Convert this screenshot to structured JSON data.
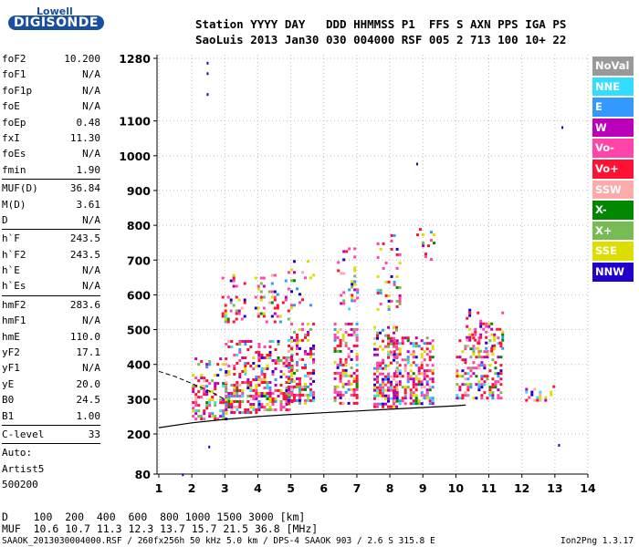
{
  "logo": {
    "line1": "Lowell",
    "line2": "DIGISONDE"
  },
  "header": {
    "labels": "Station YYYY DAY   DDD HHMMSS P1  FFS S AXN PPS IGA PS",
    "values": "SaoLuis 2013 Jan30 030 004000 RSF 005 2 713 100 10+ 22"
  },
  "params": [
    {
      "name": "foF2",
      "value": "10.200"
    },
    {
      "name": "foF1",
      "value": "N/A"
    },
    {
      "name": "foF1p",
      "value": "N/A"
    },
    {
      "name": "foE",
      "value": "N/A"
    },
    {
      "name": "foEp",
      "value": "0.48"
    },
    {
      "name": "fxI",
      "value": "11.30"
    },
    {
      "name": "foEs",
      "value": "N/A"
    },
    {
      "name": "fmin",
      "value": "1.90"
    },
    {
      "sep": true
    },
    {
      "name": "MUF(D)",
      "value": "36.84"
    },
    {
      "name": "M(D)",
      "value": "3.61"
    },
    {
      "name": "D",
      "value": "N/A"
    },
    {
      "sep": true
    },
    {
      "name": "h`F",
      "value": "243.5"
    },
    {
      "name": "h`F2",
      "value": "243.5"
    },
    {
      "name": "h`E",
      "value": "N/A"
    },
    {
      "name": "h`Es",
      "value": "N/A"
    },
    {
      "sep": true
    },
    {
      "name": "hmF2",
      "value": "283.6"
    },
    {
      "name": "hmF1",
      "value": "N/A"
    },
    {
      "name": "hmE",
      "value": "110.0"
    },
    {
      "name": "yF2",
      "value": "17.1"
    },
    {
      "name": "yF1",
      "value": "N/A"
    },
    {
      "name": "yE",
      "value": "20.0"
    },
    {
      "name": "B0",
      "value": "24.5"
    },
    {
      "name": "B1",
      "value": "1.00"
    },
    {
      "sep": true
    },
    {
      "name": "C-level",
      "value": "33"
    },
    {
      "sep": true
    },
    {
      "name": "Auto:",
      "value": ""
    },
    {
      "name": "Artist5",
      "value": ""
    },
    {
      "name": "500200",
      "value": ""
    }
  ],
  "legend": [
    {
      "label": "NoVal",
      "bg": "#999999",
      "fg": "#ffffff"
    },
    {
      "label": "NNE",
      "bg": "#33ddff",
      "fg": "#ffffff"
    },
    {
      "label": "E",
      "bg": "#3399ff",
      "fg": "#ffffff"
    },
    {
      "label": "W",
      "bg": "#bb00bb",
      "fg": "#ffffff"
    },
    {
      "label": "Vo-",
      "bg": "#ff44aa",
      "fg": "#ffffff"
    },
    {
      "label": "Vo+",
      "bg": "#ff1133",
      "fg": "#ffffff"
    },
    {
      "label": "SSW",
      "bg": "#ffaaaa",
      "fg": "#ffffff"
    },
    {
      "label": "X-",
      "bg": "#008800",
      "fg": "#ffffff"
    },
    {
      "label": "X+",
      "bg": "#77bb55",
      "fg": "#ffffff"
    },
    {
      "label": "SSE",
      "bg": "#dddd00",
      "fg": "#ffffff"
    },
    {
      "label": "NNW",
      "bg": "#2200cc",
      "fg": "#ffffff"
    }
  ],
  "bottom": {
    "d_row": "D    100  200  400  600  800 1000 1500 3000 [km]",
    "muf_row": "MUF  10.6 10.7 11.3 12.3 13.7 15.7 21.5 36.8 [MHz]",
    "footer_left": "SAAOK_2013030004000.RSF / 260fx256h 50 kHz 5.0 km / DPS-4 SAAOK 903 / 2.6 S 315.8 E",
    "footer_right": "Ion2Png 1.3.17"
  },
  "chart_data": {
    "type": "scatter",
    "x_ticks": [
      1,
      2,
      3,
      4,
      5,
      6,
      7,
      8,
      9,
      10,
      11,
      12,
      13,
      14
    ],
    "y_ticks": [
      80,
      200,
      300,
      400,
      500,
      600,
      700,
      800,
      900,
      1000,
      1100,
      1280
    ],
    "xlim": [
      1,
      14
    ],
    "ylim": [
      80,
      1280
    ],
    "grid": true,
    "trace_curve": {
      "x": [
        1.0,
        2.0,
        3.0,
        4.0,
        5.0,
        6.0,
        7.0,
        8.0,
        9.0,
        10.0,
        10.3
      ],
      "y": [
        218,
        232,
        242,
        250,
        256,
        261,
        266,
        271,
        276,
        281,
        283
      ]
    },
    "dashed_curve": {
      "x": [
        1.0,
        1.5,
        2.0,
        2.5,
        3.0
      ],
      "y": [
        380,
        365,
        345,
        325,
        300
      ]
    },
    "clusters": [
      {
        "x": [
          2.0,
          3.0
        ],
        "y": [
          245,
          420
        ],
        "density": 0.55
      },
      {
        "x": [
          2.9,
          3.6
        ],
        "y": [
          520,
          660
        ],
        "density": 0.35
      },
      {
        "x": [
          3.0,
          4.0
        ],
        "y": [
          260,
          470
        ],
        "density": 0.6
      },
      {
        "x": [
          4.0,
          5.0
        ],
        "y": [
          270,
          470
        ],
        "density": 0.6
      },
      {
        "x": [
          3.9,
          4.9
        ],
        "y": [
          520,
          660
        ],
        "density": 0.3
      },
      {
        "x": [
          4.9,
          5.7
        ],
        "y": [
          290,
          520
        ],
        "density": 0.55
      },
      {
        "x": [
          4.9,
          5.7
        ],
        "y": [
          560,
          700
        ],
        "density": 0.25
      },
      {
        "x": [
          6.3,
          7.0
        ],
        "y": [
          285,
          520
        ],
        "density": 0.65
      },
      {
        "x": [
          6.4,
          7.0
        ],
        "y": [
          560,
          760
        ],
        "density": 0.25
      },
      {
        "x": [
          7.5,
          8.2
        ],
        "y": [
          280,
          510
        ],
        "density": 0.7
      },
      {
        "x": [
          7.6,
          8.3
        ],
        "y": [
          560,
          790
        ],
        "density": 0.25
      },
      {
        "x": [
          8.1,
          9.3
        ],
        "y": [
          285,
          480
        ],
        "density": 0.65
      },
      {
        "x": [
          8.8,
          9.3
        ],
        "y": [
          700,
          800
        ],
        "density": 0.2
      },
      {
        "x": [
          10.0,
          11.4
        ],
        "y": [
          300,
          480
        ],
        "density": 0.55
      },
      {
        "x": [
          10.3,
          11.4
        ],
        "y": [
          440,
          560
        ],
        "density": 0.3
      },
      {
        "x": [
          12.1,
          13.0
        ],
        "y": [
          300,
          340
        ],
        "density": 0.35
      }
    ],
    "isolated": [
      {
        "x": 2.45,
        "y": 1270
      },
      {
        "x": 2.45,
        "y": 1240
      },
      {
        "x": 2.45,
        "y": 1180
      },
      {
        "x": 8.8,
        "y": 980
      },
      {
        "x": 13.2,
        "y": 1085
      },
      {
        "x": 2.5,
        "y": 165
      },
      {
        "x": 1.7,
        "y": 82
      },
      {
        "x": 13.1,
        "y": 170
      }
    ]
  }
}
